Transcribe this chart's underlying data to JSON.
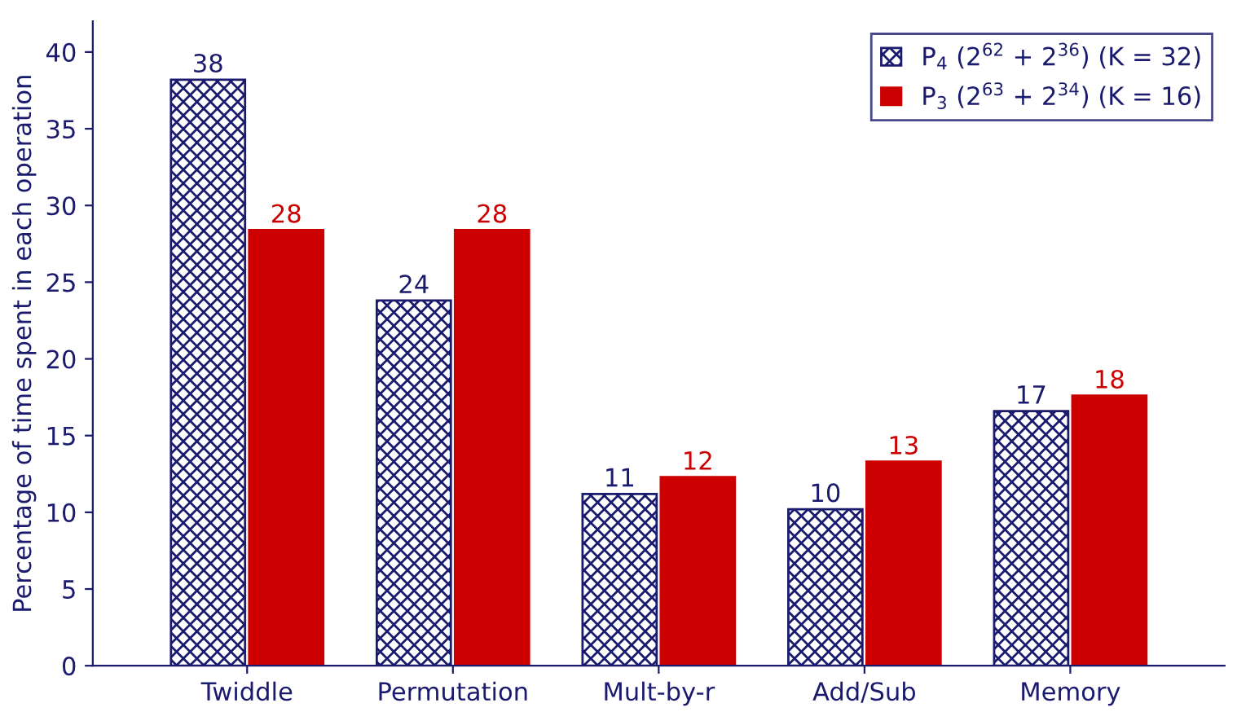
{
  "chart_data": {
    "type": "bar",
    "ylabel": "Percentage of time spent in each operation",
    "categories": [
      "Twiddle",
      "Permutation",
      "Mult-by-r",
      "Add/Sub",
      "Memory"
    ],
    "series": [
      {
        "name": "P$_{4}$ (2$^{62}$ + 2$^{36}$) (K = 32)",
        "color": "#1a1a6e",
        "values": [
          38.2,
          23.8,
          11.2,
          10.2,
          16.6
        ],
        "value_labels": [
          "38",
          "24",
          "11",
          "10",
          "17"
        ]
      },
      {
        "name": "P$_{3}$ (2$^{63}$ + 2$^{34}$) (K = 16)",
        "color": "#cc0000",
        "values": [
          28.4,
          28.4,
          12.3,
          13.3,
          17.6
        ],
        "value_labels": [
          "28",
          "28",
          "12",
          "13",
          "18"
        ]
      }
    ],
    "ylim": [
      0,
      42
    ],
    "yticks": [
      0,
      5,
      10,
      15,
      20,
      25,
      30,
      35,
      40
    ],
    "grid": false,
    "legend": "top right"
  }
}
